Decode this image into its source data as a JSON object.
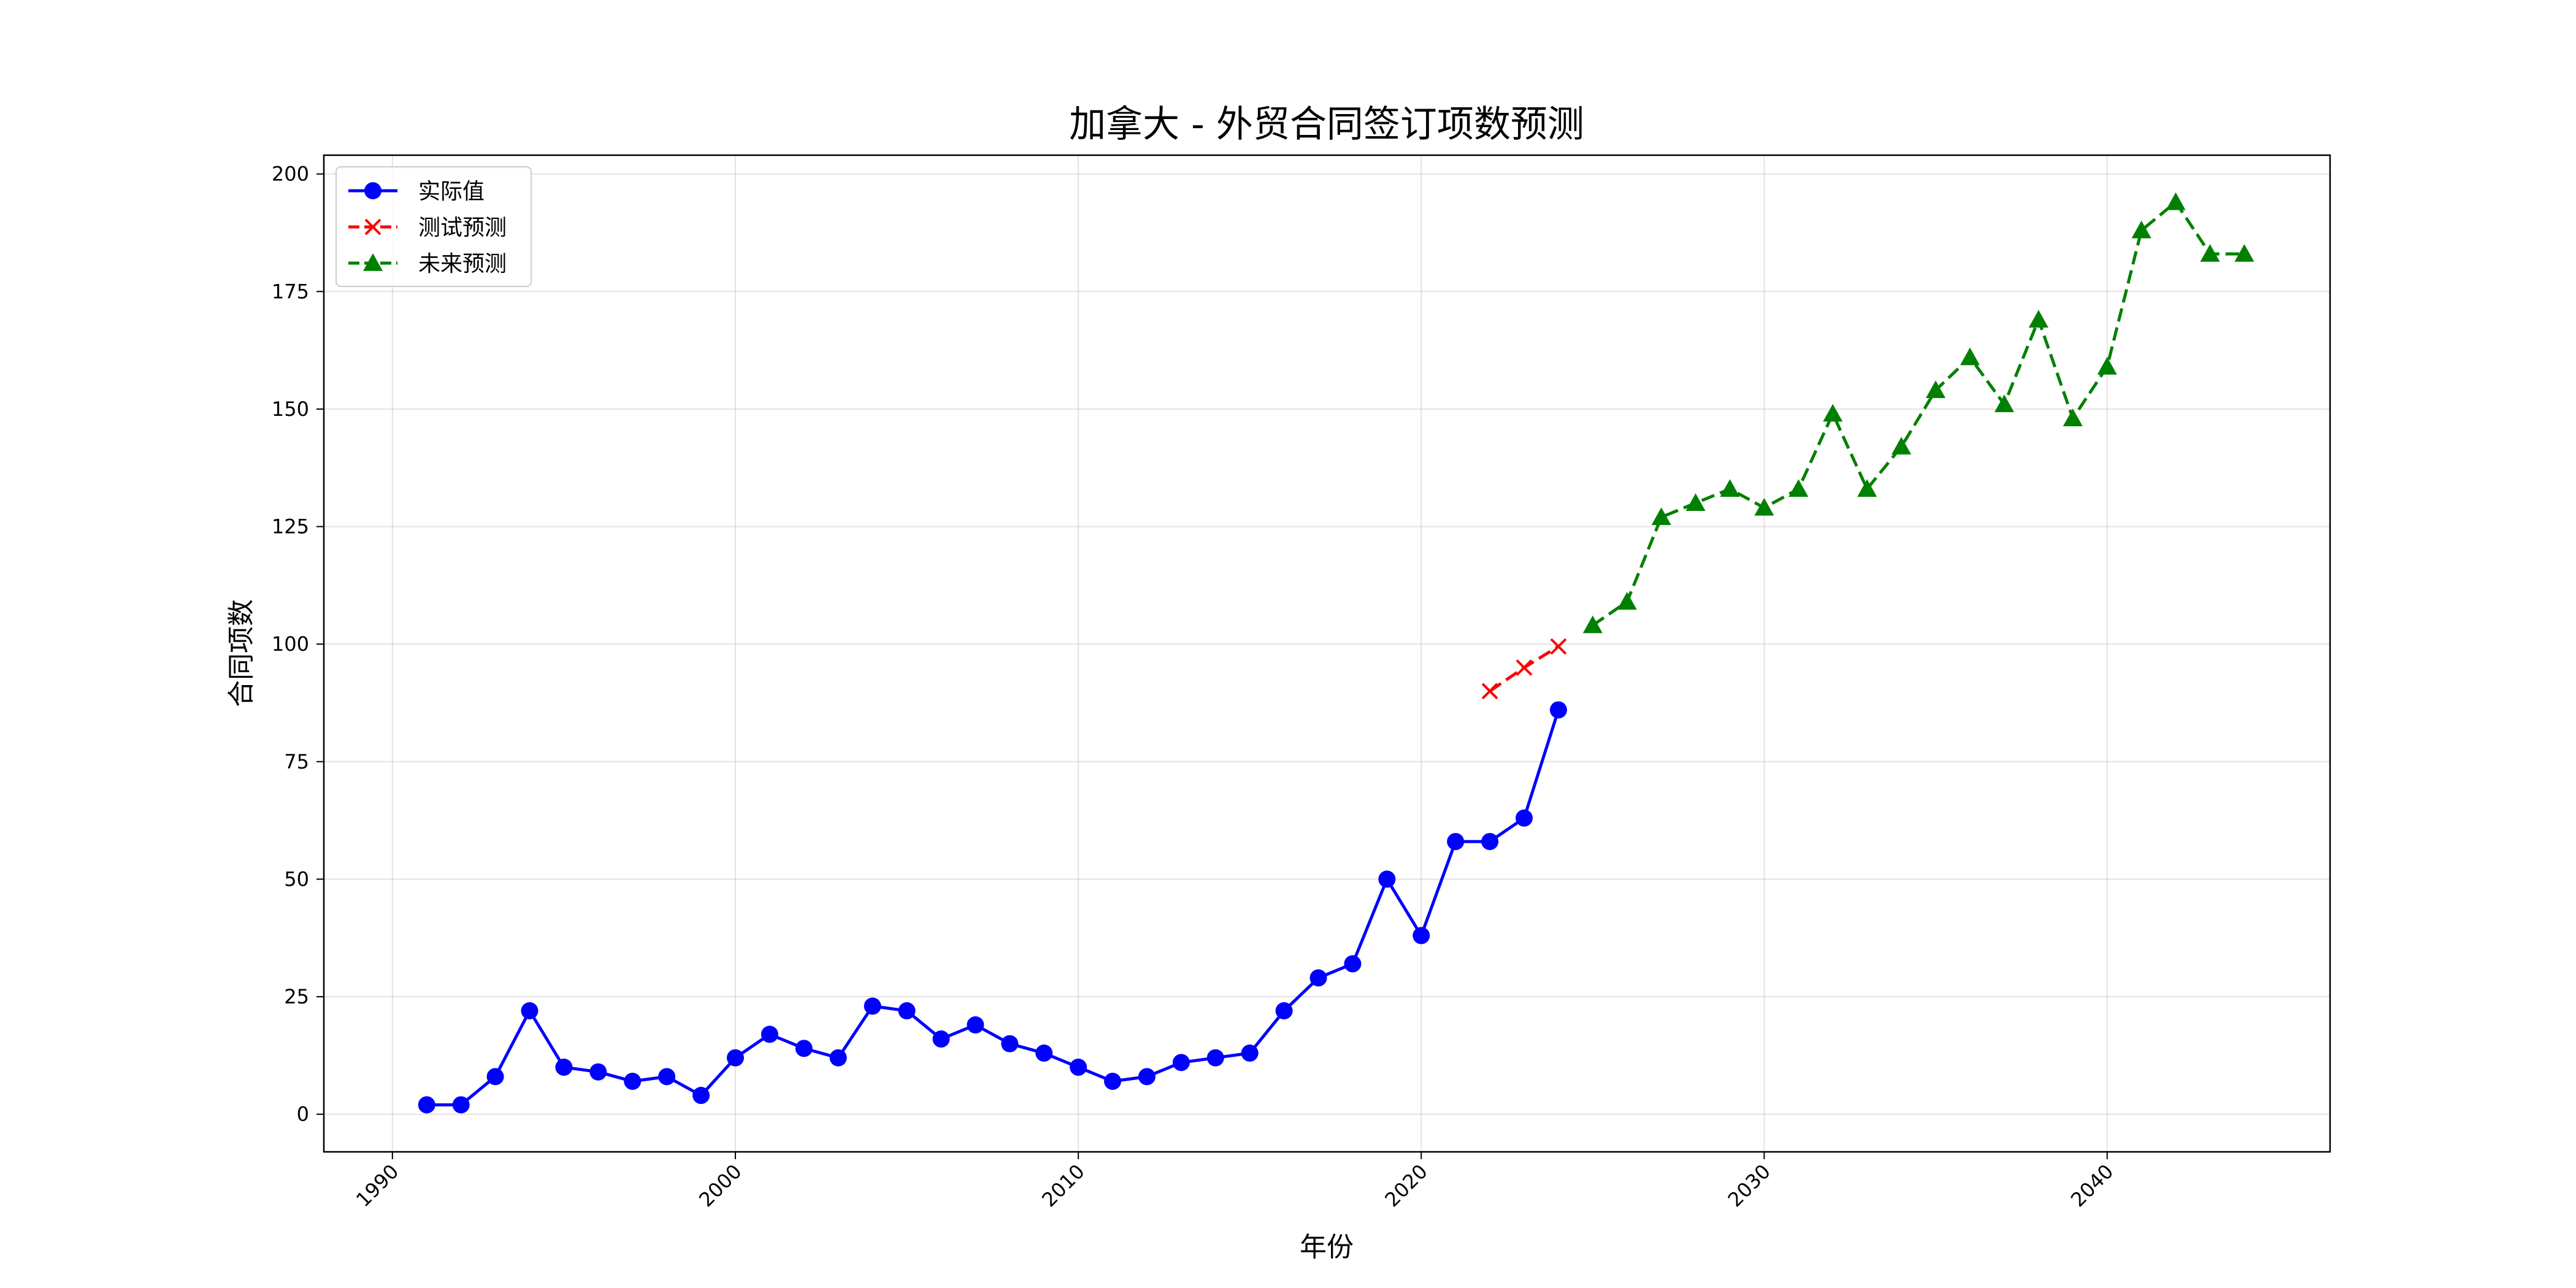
{
  "chart_data": {
    "type": "line",
    "title": "加拿大 - 外贸合同签订项数预测",
    "xlabel": "年份",
    "ylabel": "合同项数",
    "xlim": [
      1988,
      2046.5
    ],
    "ylim": [
      -8,
      204
    ],
    "xticks": [
      1990,
      2000,
      2010,
      2020,
      2030,
      2040
    ],
    "yticks": [
      0,
      25,
      50,
      75,
      100,
      125,
      150,
      175,
      200
    ],
    "grid": true,
    "legend_position": "top-left",
    "series": [
      {
        "name": "实际值",
        "color": "#0000ff",
        "marker": "circle",
        "linestyle": "solid",
        "x": [
          1991,
          1992,
          1993,
          1994,
          1995,
          1996,
          1997,
          1998,
          1999,
          2000,
          2001,
          2002,
          2003,
          2004,
          2005,
          2006,
          2007,
          2008,
          2009,
          2010,
          2011,
          2012,
          2013,
          2014,
          2015,
          2016,
          2017,
          2018,
          2019,
          2020,
          2021,
          2022,
          2023,
          2024
        ],
        "y": [
          2,
          2,
          8,
          22,
          10,
          9,
          7,
          8,
          4,
          12,
          17,
          14,
          12,
          23,
          22,
          16,
          19,
          15,
          13,
          10,
          7,
          8,
          11,
          12,
          13,
          22,
          29,
          32,
          50,
          38,
          58,
          58,
          63,
          86
        ]
      },
      {
        "name": "测试预测",
        "color": "#ff0000",
        "marker": "x",
        "linestyle": "dashed",
        "x": [
          2022,
          2023,
          2024
        ],
        "y": [
          90,
          95,
          99.5
        ]
      },
      {
        "name": "未来预测",
        "color": "#008000",
        "marker": "triangle",
        "linestyle": "dashed",
        "x": [
          2025,
          2026,
          2027,
          2028,
          2029,
          2030,
          2031,
          2032,
          2033,
          2034,
          2035,
          2036,
          2037,
          2038,
          2039,
          2040,
          2041,
          2042,
          2043,
          2044
        ],
        "y": [
          104,
          109,
          127,
          130,
          133,
          129,
          133,
          149,
          133,
          142,
          154,
          161,
          151,
          169,
          148,
          159,
          188,
          194,
          183,
          183
        ]
      }
    ]
  }
}
